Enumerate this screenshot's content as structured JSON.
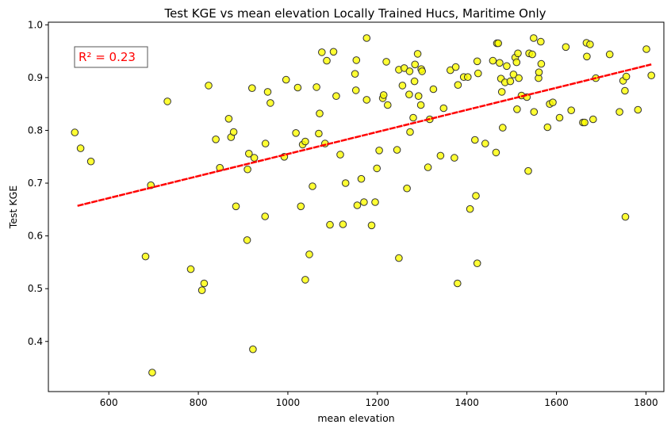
{
  "chart_data": {
    "type": "scatter",
    "title": "Test KGE vs mean elevation Locally Trained Hucs, Maritime Only",
    "xlabel": "mean elevation",
    "ylabel": "Test KGE",
    "xlim": [
      465,
      1840
    ],
    "ylim": [
      0.305,
      1.005
    ],
    "xticks": [
      600,
      800,
      1000,
      1200,
      1400,
      1600,
      1800
    ],
    "yticks": [
      0.4,
      0.5,
      0.6,
      0.7,
      0.8,
      0.9,
      1.0
    ],
    "xtick_labels": [
      "600",
      "800",
      "1000",
      "1200",
      "1400",
      "1600",
      "1800"
    ],
    "ytick_labels": [
      "0.4",
      "0.5",
      "0.6",
      "0.7",
      "0.8",
      "0.9",
      "1.0"
    ],
    "grid": false,
    "marker_color": "#ffff00",
    "marker_edge_color": "#333333",
    "fit_line_color": "#ff0000",
    "annotation": {
      "text": "R² = 0.23",
      "color": "#ff0000",
      "position": "top-left"
    },
    "fit_line": {
      "x": [
        530,
        1812
      ],
      "y": [
        0.657,
        0.925
      ]
    },
    "points": [
      [
        524,
        0.796
      ],
      [
        537,
        0.766
      ],
      [
        560,
        0.741
      ],
      [
        682,
        0.561
      ],
      [
        694,
        0.696
      ],
      [
        697,
        0.341
      ],
      [
        731,
        0.855
      ],
      [
        783,
        0.537
      ],
      [
        808,
        0.497
      ],
      [
        813,
        0.51
      ],
      [
        823,
        0.885
      ],
      [
        839,
        0.783
      ],
      [
        848,
        0.729
      ],
      [
        868,
        0.822
      ],
      [
        873,
        0.787
      ],
      [
        879,
        0.797
      ],
      [
        884,
        0.656
      ],
      [
        909,
        0.592
      ],
      [
        910,
        0.726
      ],
      [
        913,
        0.756
      ],
      [
        920,
        0.88
      ],
      [
        922,
        0.385
      ],
      [
        925,
        0.748
      ],
      [
        949,
        0.637
      ],
      [
        950,
        0.775
      ],
      [
        955,
        0.873
      ],
      [
        961,
        0.852
      ],
      [
        992,
        0.75
      ],
      [
        996,
        0.896
      ],
      [
        1018,
        0.795
      ],
      [
        1022,
        0.881
      ],
      [
        1029,
        0.656
      ],
      [
        1033,
        0.773
      ],
      [
        1039,
        0.517
      ],
      [
        1039,
        0.779
      ],
      [
        1048,
        0.565
      ],
      [
        1055,
        0.694
      ],
      [
        1064,
        0.882
      ],
      [
        1069,
        0.794
      ],
      [
        1071,
        0.832
      ],
      [
        1076,
        0.948
      ],
      [
        1083,
        0.775
      ],
      [
        1087,
        0.932
      ],
      [
        1094,
        0.621
      ],
      [
        1102,
        0.949
      ],
      [
        1108,
        0.865
      ],
      [
        1117,
        0.754
      ],
      [
        1123,
        0.622
      ],
      [
        1129,
        0.7
      ],
      [
        1150,
        0.907
      ],
      [
        1152,
        0.876
      ],
      [
        1153,
        0.933
      ],
      [
        1155,
        0.658
      ],
      [
        1164,
        0.708
      ],
      [
        1170,
        0.664
      ],
      [
        1176,
        0.858
      ],
      [
        1176,
        0.975
      ],
      [
        1187,
        0.62
      ],
      [
        1195,
        0.664
      ],
      [
        1199,
        0.728
      ],
      [
        1204,
        0.762
      ],
      [
        1212,
        0.861
      ],
      [
        1214,
        0.867
      ],
      [
        1220,
        0.93
      ],
      [
        1223,
        0.848
      ],
      [
        1244,
        0.763
      ],
      [
        1248,
        0.915
      ],
      [
        1248,
        0.558
      ],
      [
        1256,
        0.885
      ],
      [
        1260,
        0.918
      ],
      [
        1266,
        0.69
      ],
      [
        1271,
        0.868
      ],
      [
        1272,
        0.912
      ],
      [
        1273,
        0.797
      ],
      [
        1280,
        0.824
      ],
      [
        1283,
        0.893
      ],
      [
        1284,
        0.925
      ],
      [
        1290,
        0.945
      ],
      [
        1292,
        0.865
      ],
      [
        1297,
        0.848
      ],
      [
        1298,
        0.916
      ],
      [
        1300,
        0.912
      ],
      [
        1313,
        0.73
      ],
      [
        1317,
        0.821
      ],
      [
        1325,
        0.878
      ],
      [
        1341,
        0.752
      ],
      [
        1348,
        0.842
      ],
      [
        1363,
        0.914
      ],
      [
        1372,
        0.748
      ],
      [
        1375,
        0.92
      ],
      [
        1379,
        0.51
      ],
      [
        1380,
        0.886
      ],
      [
        1393,
        0.901
      ],
      [
        1402,
        0.901
      ],
      [
        1407,
        0.651
      ],
      [
        1418,
        0.782
      ],
      [
        1420,
        0.676
      ],
      [
        1423,
        0.548
      ],
      [
        1423,
        0.931
      ],
      [
        1425,
        0.908
      ],
      [
        1441,
        0.775
      ],
      [
        1458,
        0.932
      ],
      [
        1465,
        0.758
      ],
      [
        1467,
        0.965
      ],
      [
        1470,
        0.965
      ],
      [
        1473,
        0.928
      ],
      [
        1476,
        0.898
      ],
      [
        1478,
        0.873
      ],
      [
        1480,
        0.805
      ],
      [
        1485,
        0.891
      ],
      [
        1489,
        0.922
      ],
      [
        1497,
        0.893
      ],
      [
        1504,
        0.906
      ],
      [
        1508,
        0.938
      ],
      [
        1511,
        0.929
      ],
      [
        1512,
        0.84
      ],
      [
        1514,
        0.946
      ],
      [
        1516,
        0.899
      ],
      [
        1522,
        0.866
      ],
      [
        1534,
        0.863
      ],
      [
        1537,
        0.723
      ],
      [
        1539,
        0.946
      ],
      [
        1546,
        0.944
      ],
      [
        1549,
        0.975
      ],
      [
        1550,
        0.835
      ],
      [
        1560,
        0.899
      ],
      [
        1561,
        0.91
      ],
      [
        1565,
        0.968
      ],
      [
        1566,
        0.926
      ],
      [
        1580,
        0.806
      ],
      [
        1585,
        0.85
      ],
      [
        1592,
        0.853
      ],
      [
        1607,
        0.824
      ],
      [
        1621,
        0.958
      ],
      [
        1633,
        0.838
      ],
      [
        1659,
        0.815
      ],
      [
        1663,
        0.815
      ],
      [
        1667,
        0.966
      ],
      [
        1668,
        0.94
      ],
      [
        1675,
        0.963
      ],
      [
        1682,
        0.821
      ],
      [
        1688,
        0.899
      ],
      [
        1719,
        0.944
      ],
      [
        1741,
        0.835
      ],
      [
        1749,
        0.894
      ],
      [
        1753,
        0.875
      ],
      [
        1754,
        0.636
      ],
      [
        1756,
        0.902
      ],
      [
        1782,
        0.839
      ],
      [
        1801,
        0.954
      ],
      [
        1812,
        0.904
      ]
    ]
  }
}
